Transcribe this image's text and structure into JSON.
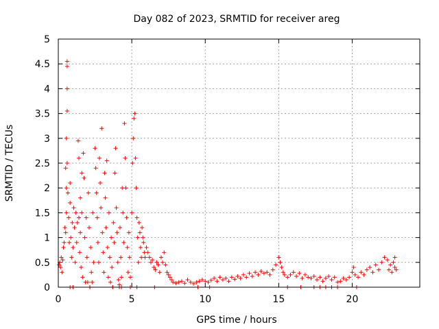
{
  "chart_data": {
    "type": "scatter",
    "title": "Day 082 of 2023, SRMTID for receiver areg",
    "xlabel": "GPS time / hours",
    "ylabel": "SRMTID / TECUs",
    "xlim": [
      0,
      24.6
    ],
    "ylim": [
      0,
      5
    ],
    "xticks": [
      0,
      5,
      10,
      15,
      20
    ],
    "xtick_labels": [
      "0",
      "5",
      "10",
      "15",
      "20"
    ],
    "yticks": [
      0,
      0.5,
      1,
      1.5,
      2,
      2.5,
      3,
      3.5,
      4,
      4.5,
      5
    ],
    "ytick_labels": [
      "0",
      "0.5",
      "1",
      "1.5",
      "2",
      "2.5",
      "3",
      "3.5",
      "4",
      "4.5",
      "5"
    ],
    "grid": true,
    "marker": "+",
    "series": [
      {
        "name": "SRMTID",
        "color": "#ff0000",
        "points": [
          [
            0.05,
            0.45
          ],
          [
            0.1,
            0.5
          ],
          [
            0.15,
            0.4
          ],
          [
            0.2,
            0.6
          ],
          [
            0.25,
            0.3
          ],
          [
            0.3,
            0.55
          ],
          [
            0.35,
            0.8
          ],
          [
            0.4,
            0.9
          ],
          [
            0.45,
            1.2
          ],
          [
            0.5,
            1.1
          ],
          [
            0.5,
            2.4
          ],
          [
            0.55,
            2.0
          ],
          [
            0.55,
            1.5
          ],
          [
            0.6,
            4.55
          ],
          [
            0.6,
            4.45
          ],
          [
            0.6,
            4.0
          ],
          [
            0.6,
            3.55
          ],
          [
            0.55,
            3.0
          ],
          [
            0.6,
            2.5
          ],
          [
            0.65,
            1.9
          ],
          [
            0.7,
            1.4
          ],
          [
            0.75,
            0.9
          ],
          [
            0.8,
            2.1
          ],
          [
            0.8,
            1.7
          ],
          [
            0.85,
            1.0
          ],
          [
            0.9,
            0.6
          ],
          [
            0.95,
            1.3
          ],
          [
            1.0,
            0.8
          ],
          [
            1.0,
            0.0
          ],
          [
            1.05,
            1.6
          ],
          [
            1.1,
            1.2
          ],
          [
            1.15,
            0.5
          ],
          [
            1.2,
            1.5
          ],
          [
            1.25,
            0.9
          ],
          [
            1.3,
            1.3
          ],
          [
            1.35,
            2.95
          ],
          [
            1.4,
            2.6
          ],
          [
            1.4,
            1.4
          ],
          [
            1.45,
            0.7
          ],
          [
            1.5,
            1.8
          ],
          [
            1.5,
            1.1
          ],
          [
            1.55,
            0.4
          ],
          [
            1.6,
            2.3
          ],
          [
            1.6,
            1.5
          ],
          [
            1.65,
            0.2
          ],
          [
            1.7,
            2.7
          ],
          [
            1.75,
            2.2
          ],
          [
            1.8,
            1.0
          ],
          [
            1.85,
            0.1
          ],
          [
            1.9,
            1.4
          ],
          [
            1.95,
            0.6
          ],
          [
            2.0,
            0.1
          ],
          [
            2.05,
            1.9
          ],
          [
            2.1,
            1.2
          ],
          [
            2.15,
            0.0
          ],
          [
            2.2,
            0.8
          ],
          [
            2.25,
            0.3
          ],
          [
            2.3,
            0.1
          ],
          [
            2.35,
            1.5
          ],
          [
            2.4,
            0.5
          ],
          [
            2.5,
            2.8
          ],
          [
            2.55,
            2.4
          ],
          [
            2.6,
            1.9
          ],
          [
            2.65,
            1.4
          ],
          [
            2.7,
            0.9
          ],
          [
            2.75,
            0.5
          ],
          [
            2.8,
            2.6
          ],
          [
            2.85,
            2.1
          ],
          [
            2.9,
            1.6
          ],
          [
            2.95,
            3.2
          ],
          [
            3.0,
            1.1
          ],
          [
            3.05,
            0.7
          ],
          [
            3.1,
            0.3
          ],
          [
            3.15,
            2.3
          ],
          [
            3.2,
            1.8
          ],
          [
            3.25,
            1.2
          ],
          [
            3.3,
            2.55
          ],
          [
            3.35,
            0.8
          ],
          [
            3.4,
            0.2
          ],
          [
            3.45,
            1.5
          ],
          [
            3.5,
            0.6
          ],
          [
            3.55,
            0.1
          ],
          [
            3.6,
            1.0
          ],
          [
            3.65,
            0.4
          ],
          [
            3.7,
            0.0
          ],
          [
            3.75,
            1.3
          ],
          [
            3.8,
            0.9
          ],
          [
            3.85,
            2.3
          ],
          [
            3.9,
            2.8
          ],
          [
            3.95,
            1.6
          ],
          [
            4.0,
            1.1
          ],
          [
            4.05,
            0.5
          ],
          [
            4.1,
            0.15
          ],
          [
            4.15,
            0.05
          ],
          [
            4.2,
            1.2
          ],
          [
            4.25,
            0.6
          ],
          [
            4.3,
            0.2
          ],
          [
            4.35,
            2.0
          ],
          [
            4.4,
            1.5
          ],
          [
            4.45,
            0.9
          ],
          [
            4.5,
            3.3
          ],
          [
            4.55,
            2.6
          ],
          [
            4.6,
            2.0
          ],
          [
            4.65,
            1.4
          ],
          [
            4.7,
            0.8
          ],
          [
            4.75,
            0.3
          ],
          [
            4.8,
            1.1
          ],
          [
            4.85,
            0.6
          ],
          [
            4.9,
            0.2
          ],
          [
            5.0,
            1.5
          ],
          [
            5.05,
            2.5
          ],
          [
            5.1,
            3.0
          ],
          [
            5.15,
            3.4
          ],
          [
            5.2,
            3.5
          ],
          [
            5.25,
            2.6
          ],
          [
            5.3,
            2.0
          ],
          [
            5.35,
            1.4
          ],
          [
            5.4,
            1.0
          ],
          [
            5.45,
            0.5
          ],
          [
            5.5,
            1.3
          ],
          [
            5.55,
            1.1
          ],
          [
            5.6,
            0.8
          ],
          [
            5.65,
            0.6
          ],
          [
            5.7,
            1.2
          ],
          [
            5.75,
            1.0
          ],
          [
            5.8,
            0.9
          ],
          [
            5.85,
            0.7
          ],
          [
            5.9,
            0.6
          ],
          [
            6.0,
            0.8
          ],
          [
            6.1,
            0.7
          ],
          [
            6.2,
            0.6
          ],
          [
            6.3,
            0.5
          ],
          [
            6.4,
            0.55
          ],
          [
            6.5,
            0.4
          ],
          [
            6.6,
            0.35
          ],
          [
            6.7,
            0.5
          ],
          [
            6.8,
            0.45
          ],
          [
            6.9,
            0.3
          ],
          [
            7.0,
            0.6
          ],
          [
            7.1,
            0.5
          ],
          [
            7.2,
            0.7
          ],
          [
            7.3,
            0.45
          ],
          [
            7.4,
            0.3
          ],
          [
            7.5,
            0.25
          ],
          [
            7.6,
            0.2
          ],
          [
            7.7,
            0.15
          ],
          [
            7.8,
            0.1
          ],
          [
            8.0,
            0.08
          ],
          [
            8.2,
            0.1
          ],
          [
            8.4,
            0.12
          ],
          [
            8.6,
            0.08
          ],
          [
            8.8,
            0.15
          ],
          [
            9.0,
            0.1
          ],
          [
            9.2,
            0.07
          ],
          [
            9.4,
            0.1
          ],
          [
            9.6,
            0.12
          ],
          [
            9.8,
            0.15
          ],
          [
            10.0,
            0.12
          ],
          [
            10.2,
            0.1
          ],
          [
            10.4,
            0.14
          ],
          [
            10.6,
            0.18
          ],
          [
            10.8,
            0.12
          ],
          [
            11.0,
            0.2
          ],
          [
            11.2,
            0.15
          ],
          [
            11.4,
            0.18
          ],
          [
            11.6,
            0.12
          ],
          [
            11.8,
            0.2
          ],
          [
            12.0,
            0.16
          ],
          [
            12.2,
            0.22
          ],
          [
            12.4,
            0.18
          ],
          [
            12.6,
            0.25
          ],
          [
            12.8,
            0.2
          ],
          [
            13.0,
            0.28
          ],
          [
            13.2,
            0.22
          ],
          [
            13.4,
            0.3
          ],
          [
            13.6,
            0.25
          ],
          [
            13.8,
            0.32
          ],
          [
            14.0,
            0.28
          ],
          [
            14.2,
            0.3
          ],
          [
            14.4,
            0.25
          ],
          [
            14.6,
            0.35
          ],
          [
            14.8,
            0.45
          ],
          [
            15.0,
            0.6
          ],
          [
            15.1,
            0.5
          ],
          [
            15.2,
            0.4
          ],
          [
            15.3,
            0.3
          ],
          [
            15.4,
            0.25
          ],
          [
            15.6,
            0.2
          ],
          [
            15.8,
            0.25
          ],
          [
            16.0,
            0.3
          ],
          [
            16.2,
            0.22
          ],
          [
            16.4,
            0.28
          ],
          [
            16.6,
            0.18
          ],
          [
            16.8,
            0.25
          ],
          [
            17.0,
            0.2
          ],
          [
            17.2,
            0.18
          ],
          [
            17.4,
            0.22
          ],
          [
            17.6,
            0.15
          ],
          [
            17.8,
            0.2
          ],
          [
            18.0,
            0.12
          ],
          [
            18.2,
            0.18
          ],
          [
            18.4,
            0.22
          ],
          [
            18.6,
            0.15
          ],
          [
            18.8,
            0.2
          ],
          [
            19.0,
            0.1
          ],
          [
            19.2,
            0.12
          ],
          [
            19.4,
            0.18
          ],
          [
            19.6,
            0.15
          ],
          [
            19.8,
            0.2
          ],
          [
            20.0,
            0.3
          ],
          [
            20.1,
            0.4
          ],
          [
            20.2,
            0.25
          ],
          [
            20.4,
            0.2
          ],
          [
            20.6,
            0.3
          ],
          [
            20.8,
            0.25
          ],
          [
            21.0,
            0.35
          ],
          [
            21.2,
            0.4
          ],
          [
            21.4,
            0.3
          ],
          [
            21.6,
            0.45
          ],
          [
            21.8,
            0.35
          ],
          [
            22.0,
            0.5
          ],
          [
            22.2,
            0.6
          ],
          [
            22.4,
            0.55
          ],
          [
            22.6,
            0.45
          ],
          [
            22.8,
            0.5
          ],
          [
            22.9,
            0.4
          ],
          [
            22.9,
            0.6
          ],
          [
            23.0,
            0.35
          ],
          [
            22.7,
            0.3
          ],
          [
            22.5,
            0.35
          ]
        ]
      }
    ],
    "zero_markers_x": [
      0.8,
      1.0,
      2.15,
      3.7,
      4.15,
      4.3,
      4.9,
      5.35,
      6.55,
      9.5,
      10.3,
      15.6,
      16.5,
      17.4,
      17.8,
      18.2,
      18.6,
      19.0,
      20.3
    ]
  }
}
